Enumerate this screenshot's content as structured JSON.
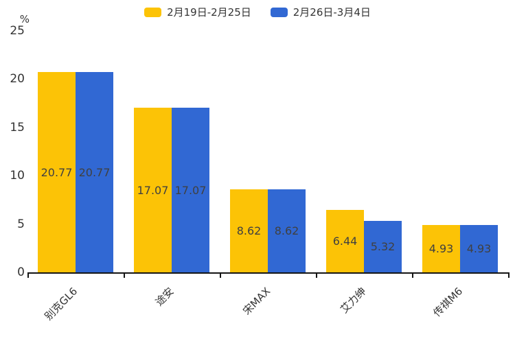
{
  "y_axis": {
    "unit": "%",
    "ticks": [
      0,
      5,
      10,
      15,
      20,
      25
    ]
  },
  "legend": {
    "items": [
      {
        "label": "2月19日-2月25日",
        "color": "#FCC306"
      },
      {
        "label": "2月26日-3月4日",
        "color": "#3168D3"
      }
    ]
  },
  "chart_data": {
    "type": "bar",
    "title": "",
    "xlabel": "",
    "ylabel": "%",
    "categories": [
      "别克GL6",
      "途安",
      "宋MAX",
      "艾力绅",
      "传祺M6"
    ],
    "series": [
      {
        "name": "2月19日-2月25日",
        "color": "#FCC306",
        "values": [
          20.77,
          17.07,
          8.62,
          6.44,
          4.93
        ]
      },
      {
        "name": "2月26日-3月4日",
        "color": "#3168D3",
        "values": [
          20.77,
          17.07,
          8.62,
          5.32,
          4.93
        ]
      }
    ],
    "ylim": [
      0,
      25
    ],
    "yticks": [
      0,
      5,
      10,
      15,
      20,
      25
    ],
    "grid": false,
    "legend_position": "top-center",
    "value_labels": "inside-center",
    "value_label_color": "#404040",
    "axis_color": "#141414"
  }
}
